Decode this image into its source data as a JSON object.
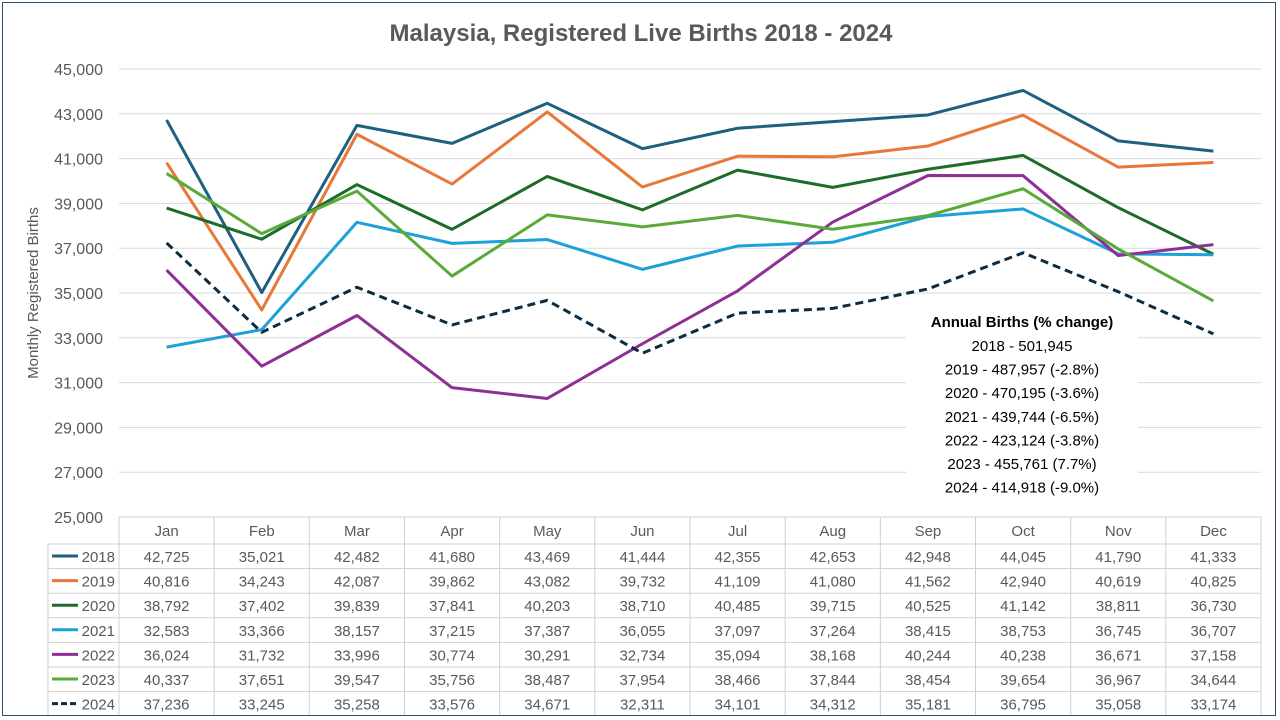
{
  "chart_data": {
    "type": "line",
    "title": "Malaysia, Registered Live Births 2018 - 2024",
    "ylabel": "Monthly Registered Births",
    "xlabel": "",
    "ylim": [
      25000,
      45000
    ],
    "yticks": [
      "25,000",
      "27,000",
      "29,000",
      "31,000",
      "33,000",
      "35,000",
      "37,000",
      "39,000",
      "41,000",
      "43,000",
      "45,000"
    ],
    "grid": true,
    "legend": "data-table-bottom",
    "categories": [
      "Jan",
      "Feb",
      "Mar",
      "Apr",
      "May",
      "Jun",
      "Jul",
      "Aug",
      "Sep",
      "Oct",
      "Nov",
      "Dec"
    ],
    "series": [
      {
        "name": "2018",
        "color": "#1f5f7f",
        "dashed": false,
        "values": [
          42725,
          35021,
          42482,
          41680,
          43469,
          41444,
          42355,
          42653,
          42948,
          44045,
          41790,
          41333
        ]
      },
      {
        "name": "2019",
        "color": "#e8773a",
        "dashed": false,
        "values": [
          40816,
          34243,
          42087,
          39862,
          43082,
          39732,
          41109,
          41080,
          41562,
          42940,
          40619,
          40825
        ]
      },
      {
        "name": "2020",
        "color": "#1e6b2a",
        "dashed": false,
        "values": [
          38792,
          37402,
          39839,
          37841,
          40203,
          38710,
          40485,
          39715,
          40525,
          41142,
          38811,
          36730
        ]
      },
      {
        "name": "2021",
        "color": "#1ea0d8",
        "dashed": false,
        "values": [
          32583,
          33366,
          38157,
          37215,
          37387,
          36055,
          37097,
          37264,
          38415,
          38753,
          36745,
          36707
        ]
      },
      {
        "name": "2022",
        "color": "#8e2f96",
        "dashed": false,
        "values": [
          36024,
          31732,
          33996,
          30774,
          30291,
          32734,
          35094,
          38168,
          40244,
          40238,
          36671,
          37158
        ]
      },
      {
        "name": "2023",
        "color": "#5aaa3a",
        "dashed": false,
        "values": [
          40337,
          37651,
          39547,
          35756,
          38487,
          37954,
          38466,
          37844,
          38454,
          39654,
          36967,
          34644
        ]
      },
      {
        "name": "2024",
        "color": "#0e2c40",
        "dashed": true,
        "values": [
          37236,
          33245,
          35258,
          33576,
          34671,
          32311,
          34101,
          34312,
          35181,
          36795,
          35058,
          33174
        ]
      }
    ],
    "annotation": {
      "title": "Annual Births (% change)",
      "lines": [
        "2018 - 501,945",
        "2019 - 487,957 (-2.8%)",
        "2020 - 470,195 (-3.6%)",
        "2021 - 439,744 (-6.5%)",
        "2022 - 423,124 (-3.8%)",
        "2023 - 455,761 (7.7%)",
        "2024 - 414,918 (-9.0%)"
      ]
    }
  }
}
